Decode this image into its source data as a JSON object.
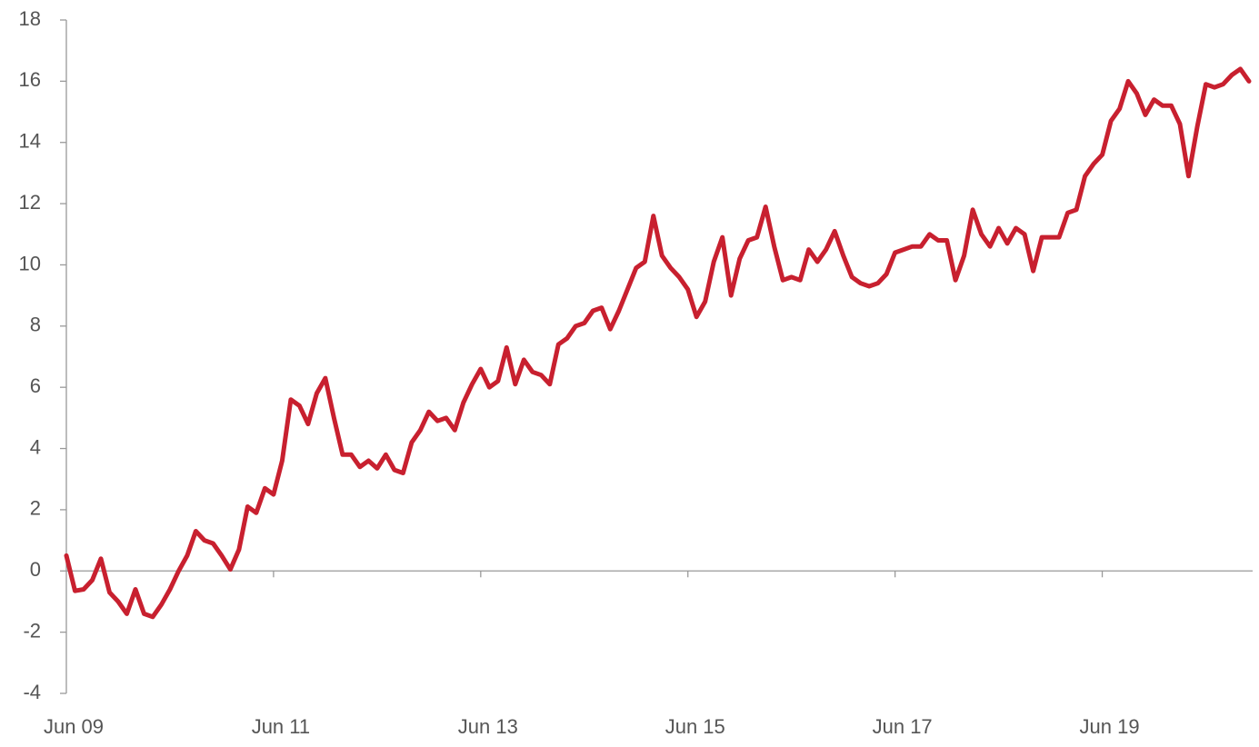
{
  "chart_data": {
    "type": "line",
    "categories": [
      "Jun 09",
      null,
      null,
      null,
      null,
      null,
      null,
      null,
      null,
      null,
      null,
      null,
      null,
      null,
      null,
      null,
      null,
      null,
      null,
      null,
      null,
      null,
      null,
      null,
      "Jun 11",
      null,
      null,
      null,
      null,
      null,
      null,
      null,
      null,
      null,
      null,
      null,
      null,
      null,
      null,
      null,
      null,
      null,
      null,
      null,
      null,
      null,
      null,
      null,
      "Jun 13",
      null,
      null,
      null,
      null,
      null,
      null,
      null,
      null,
      null,
      null,
      null,
      null,
      null,
      null,
      null,
      null,
      null,
      null,
      null,
      null,
      null,
      null,
      null,
      "Jun 15",
      null,
      null,
      null,
      null,
      null,
      null,
      null,
      null,
      null,
      null,
      null,
      null,
      null,
      null,
      null,
      null,
      null,
      null,
      null,
      null,
      null,
      null,
      null,
      "Jun 17",
      null,
      null,
      null,
      null,
      null,
      null,
      null,
      null,
      null,
      null,
      null,
      null,
      null,
      null,
      null,
      null,
      null,
      null,
      null,
      null,
      null,
      null,
      null,
      "Jun 19",
      null,
      null,
      null,
      null,
      null,
      null,
      null,
      null,
      null,
      null,
      null,
      null,
      null,
      null,
      null,
      null,
      null
    ],
    "values": [
      0.5,
      -0.65,
      -0.6,
      -0.3,
      0.4,
      -0.7,
      -1.0,
      -1.4,
      -0.6,
      -1.4,
      -1.5,
      -1.1,
      -0.6,
      0.0,
      0.5,
      1.3,
      1.0,
      0.9,
      0.5,
      0.05,
      0.7,
      2.1,
      1.9,
      2.7,
      2.5,
      3.6,
      5.6,
      5.4,
      4.8,
      5.8,
      6.3,
      5.0,
      3.8,
      3.8,
      3.4,
      3.6,
      3.35,
      3.8,
      3.3,
      3.2,
      4.2,
      4.6,
      5.2,
      4.9,
      5.0,
      4.6,
      5.5,
      6.1,
      6.6,
      6.0,
      6.2,
      7.3,
      6.1,
      6.9,
      6.5,
      6.4,
      6.1,
      7.4,
      7.6,
      8.0,
      8.1,
      8.5,
      8.6,
      7.9,
      8.5,
      9.2,
      9.9,
      10.1,
      11.6,
      10.3,
      9.9,
      9.6,
      9.2,
      8.3,
      8.8,
      10.1,
      10.9,
      9.0,
      10.2,
      10.8,
      10.9,
      11.9,
      10.6,
      9.5,
      9.6,
      9.5,
      10.5,
      10.1,
      10.5,
      11.1,
      10.3,
      9.6,
      9.4,
      9.3,
      9.4,
      9.7,
      10.4,
      10.5,
      10.6,
      10.6,
      11.0,
      10.8,
      10.8,
      9.5,
      10.3,
      11.8,
      11.0,
      10.6,
      11.2,
      10.7,
      11.2,
      11.0,
      9.8,
      10.9,
      10.9,
      10.9,
      11.7,
      11.8,
      12.9,
      13.3,
      13.6,
      14.7,
      15.1,
      16.0,
      15.6,
      14.9,
      15.4,
      15.2,
      15.2,
      14.6,
      12.9,
      14.5,
      15.9,
      15.8,
      15.9,
      16.2,
      16.4,
      16.0
    ],
    "color": "#c8202f",
    "ylim": [
      -4,
      18
    ],
    "yticks": [
      -4,
      -2,
      0,
      2,
      4,
      6,
      8,
      10,
      12,
      14,
      16,
      18
    ],
    "grid": false
  }
}
